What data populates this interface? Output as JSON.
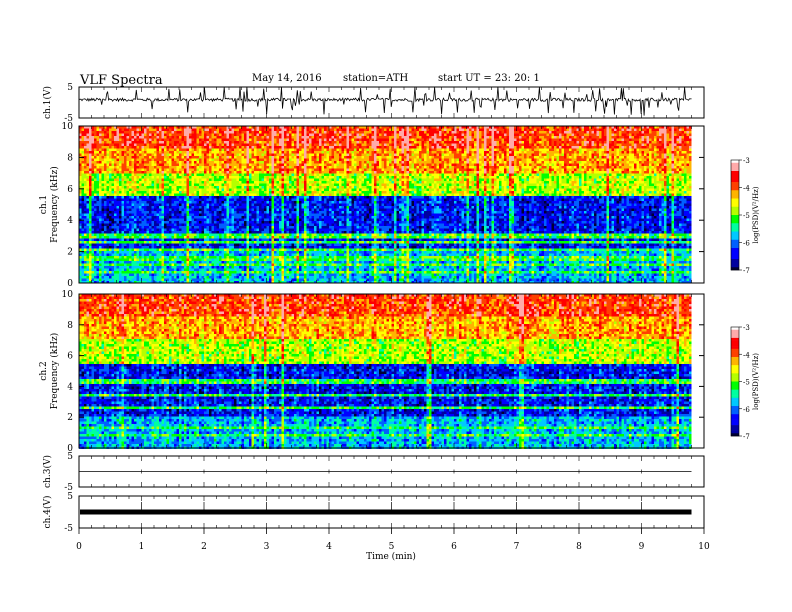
{
  "header": {
    "title": "VLF  Spectra",
    "date": "May 14, 2016",
    "station": "station=ATH",
    "start": "start  UT  =   23: 20: 1"
  },
  "chart_data": [
    {
      "type": "line",
      "id": "ch1-waveform",
      "ylabel": "ch.1(V)",
      "ylim": [
        -5,
        5
      ],
      "y_ticks": [
        "5",
        "-5"
      ],
      "xlim": [
        0,
        10
      ],
      "data_end": 9.8,
      "baseline": 0.9,
      "spread": 0.5,
      "spike_count": 70,
      "line_color": "#000000"
    },
    {
      "type": "heatmap",
      "id": "ch1-spectrogram",
      "ylabel": "ch.1\nFrequency  (kHz)",
      "ylim": [
        0,
        10
      ],
      "y_ticks": [
        "0",
        "2",
        "4",
        "6",
        "8",
        "10"
      ],
      "xlim": [
        0,
        10
      ],
      "data_end": 9.8,
      "colorbar": {
        "label": "log(PSD)(V²/Hz)",
        "range": [
          -7,
          -3
        ],
        "ticks": [
          "-3",
          "-4",
          "-5",
          "-6",
          "-7"
        ]
      },
      "bands_khz": [
        2.1,
        2.6,
        3.0,
        1.2,
        1.6,
        0.7
      ]
    },
    {
      "type": "heatmap",
      "id": "ch2-spectrogram",
      "ylabel": "ch.2\nFrequency  (kHz)",
      "ylim": [
        0,
        10
      ],
      "y_ticks": [
        "0",
        "2",
        "4",
        "6",
        "8",
        "10"
      ],
      "xlim": [
        0,
        10
      ],
      "data_end": 9.8,
      "colorbar": {
        "label": "log(PSD)(V²/Hz)",
        "range": [
          -7,
          -3
        ],
        "ticks": [
          "-3",
          "-4",
          "-5",
          "-6",
          "-7"
        ]
      },
      "bands_khz": [
        4.3,
        3.4,
        2.6,
        1.3,
        0.8
      ]
    },
    {
      "type": "line",
      "id": "ch3-waveform",
      "ylabel": "ch.3(V)",
      "ylim": [
        -5,
        5
      ],
      "y_ticks": [
        "5",
        "-5"
      ],
      "xlim": [
        0,
        10
      ],
      "data_end": 9.8,
      "baseline": 0.0,
      "line_color": "#000000"
    },
    {
      "type": "line",
      "id": "ch4-waveform",
      "ylabel": "ch.4(V)",
      "ylim": [
        -5,
        5
      ],
      "y_ticks": [
        "5",
        "-5"
      ],
      "xlim": [
        0,
        10
      ],
      "data_end": 9.8,
      "baseline": 0.0,
      "line_color": "#000000"
    }
  ],
  "x_axis": {
    "label": "Time  (min)",
    "ticks": [
      "0",
      "1",
      "2",
      "3",
      "4",
      "5",
      "6",
      "7",
      "8",
      "9",
      "10"
    ]
  },
  "colors": {
    "colormap": [
      "#000033",
      "#0000a0",
      "#0000ff",
      "#0060ff",
      "#00c8ff",
      "#00ffa0",
      "#00ff00",
      "#b4ff00",
      "#ffff00",
      "#ffb400",
      "#ff4000",
      "#ff0000",
      "#ffaaaa",
      "#ffffff"
    ]
  }
}
